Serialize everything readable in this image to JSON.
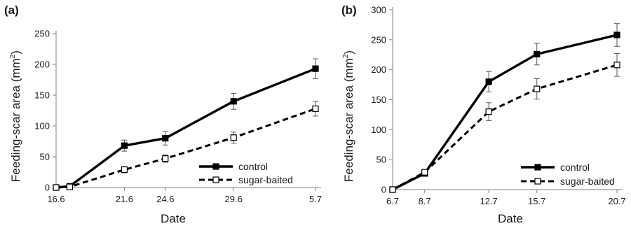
{
  "chart_data": [
    {
      "type": "line",
      "panel_label": "(a)",
      "xlabel": "Date",
      "ylabel_base": "Feeding-scar area (mm",
      "ylabel_sup": "2",
      "ylabel_close": ")",
      "x_ticks": [
        {
          "label": "16.6",
          "day": 0
        },
        {
          "label": "21.6",
          "day": 5
        },
        {
          "label": "24.6",
          "day": 8
        },
        {
          "label": "29.6",
          "day": 13
        },
        {
          "label": "5.7",
          "day": 19
        }
      ],
      "ylim": [
        0,
        250
      ],
      "y_ticks": [
        0,
        50,
        100,
        150,
        200,
        250
      ],
      "series": [
        {
          "name": "control",
          "style": "solid",
          "marker": "filled-square",
          "points": [
            {
              "day": 0,
              "y": 0,
              "err": 0
            },
            {
              "day": 1,
              "y": 2,
              "err": 0
            },
            {
              "day": 5,
              "y": 68,
              "err": 9
            },
            {
              "day": 8,
              "y": 80,
              "err": 11
            },
            {
              "day": 13,
              "y": 140,
              "err": 13
            },
            {
              "day": 19,
              "y": 193,
              "err": 16
            }
          ]
        },
        {
          "name": "sugar-baited",
          "style": "dashed",
          "marker": "open-square",
          "points": [
            {
              "day": 0,
              "y": 0,
              "err": 0
            },
            {
              "day": 1,
              "y": 1,
              "err": 0
            },
            {
              "day": 5,
              "y": 29,
              "err": 5
            },
            {
              "day": 8,
              "y": 47,
              "err": 6
            },
            {
              "day": 13,
              "y": 81,
              "err": 9
            },
            {
              "day": 19,
              "y": 128,
              "err": 12
            }
          ]
        }
      ],
      "legend": "bottom-right",
      "grid": false
    },
    {
      "type": "line",
      "panel_label": "(b)",
      "xlabel": "Date",
      "ylabel_base": "Feeding-scar area (mm",
      "ylabel_sup": "2",
      "ylabel_close": ")",
      "x_ticks": [
        {
          "label": "6.7",
          "day": 0
        },
        {
          "label": "8.7",
          "day": 2
        },
        {
          "label": "12.7",
          "day": 6
        },
        {
          "label": "15.7",
          "day": 9
        },
        {
          "label": "20.7",
          "day": 14
        }
      ],
      "ylim": [
        0,
        300
      ],
      "y_ticks": [
        0,
        50,
        100,
        150,
        200,
        250,
        300
      ],
      "series": [
        {
          "name": "control",
          "style": "solid",
          "marker": "filled-square",
          "points": [
            {
              "day": 0,
              "y": 0,
              "err": 0
            },
            {
              "day": 2,
              "y": 27,
              "err": 2
            },
            {
              "day": 6,
              "y": 180,
              "err": 17
            },
            {
              "day": 9,
              "y": 226,
              "err": 18
            },
            {
              "day": 14,
              "y": 258,
              "err": 19
            }
          ]
        },
        {
          "name": "sugar-baited",
          "style": "dashed",
          "marker": "open-square",
          "points": [
            {
              "day": 0,
              "y": 0,
              "err": 0
            },
            {
              "day": 2,
              "y": 29,
              "err": 2
            },
            {
              "day": 6,
              "y": 130,
              "err": 15
            },
            {
              "day": 9,
              "y": 168,
              "err": 17
            },
            {
              "day": 14,
              "y": 208,
              "err": 19
            }
          ]
        }
      ],
      "legend": "bottom-right",
      "grid": false
    }
  ]
}
